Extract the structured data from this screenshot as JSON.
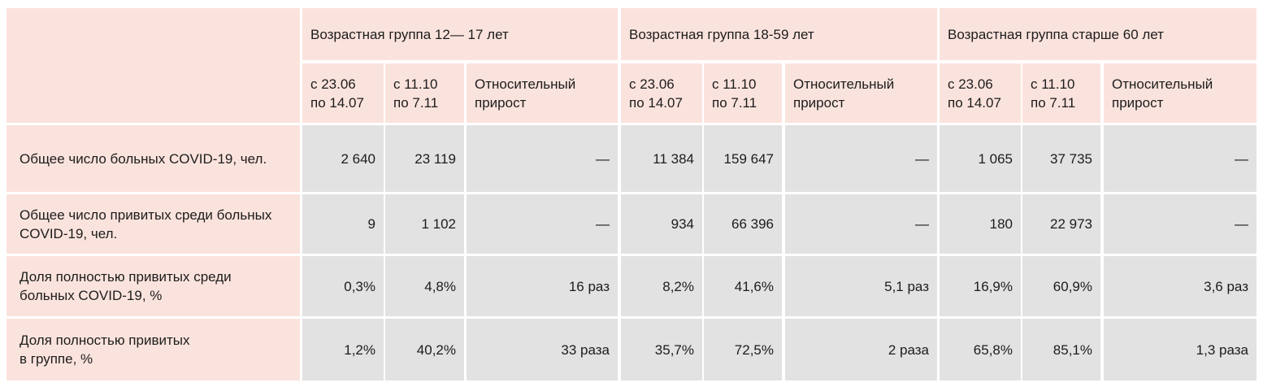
{
  "groups": [
    {
      "title": "Возрастная группа 12— 17 лет"
    },
    {
      "title": "Возрастная группа 18-59 лет"
    },
    {
      "title": "Возрастная группа старше 60 лет"
    }
  ],
  "subheaders": {
    "period1": {
      "line1": "с 23.06",
      "line2": "по 14.07"
    },
    "period2": {
      "line1": "с 11.10",
      "line2": "по 7.11"
    },
    "growth": {
      "line1": "Относительный",
      "line2": "прирост"
    }
  },
  "rows": [
    {
      "label_line1": "Общее число больных COVID-19, чел.",
      "label_line2": "",
      "values": [
        "2 640",
        "23 119",
        "—",
        "11 384",
        "159 647",
        "—",
        "1 065",
        "37 735",
        "—"
      ]
    },
    {
      "label_line1": "Общее число привитых среди больных",
      "label_line2": "COVID-19, чел.",
      "values": [
        "9",
        "1 102",
        "—",
        "934",
        "66 396",
        "—",
        "180",
        "22 973",
        "—"
      ]
    },
    {
      "label_line1": "Доля полностью привитых среди",
      "label_line2": "больных COVID-19, %",
      "values": [
        "0,3%",
        "4,8%",
        "16 раз",
        "8,2%",
        "41,6%",
        "5,1 раз",
        "16,9%",
        "60,9%",
        "3,6 раз"
      ]
    },
    {
      "label_line1": "Доля полностью привитых",
      "label_line2": "в группе, %",
      "values": [
        "1,2%",
        "40,2%",
        "33 раза",
        "35,7%",
        "72,5%",
        "2 раза",
        "65,8%",
        "85,1%",
        "1,3 раза"
      ]
    }
  ]
}
